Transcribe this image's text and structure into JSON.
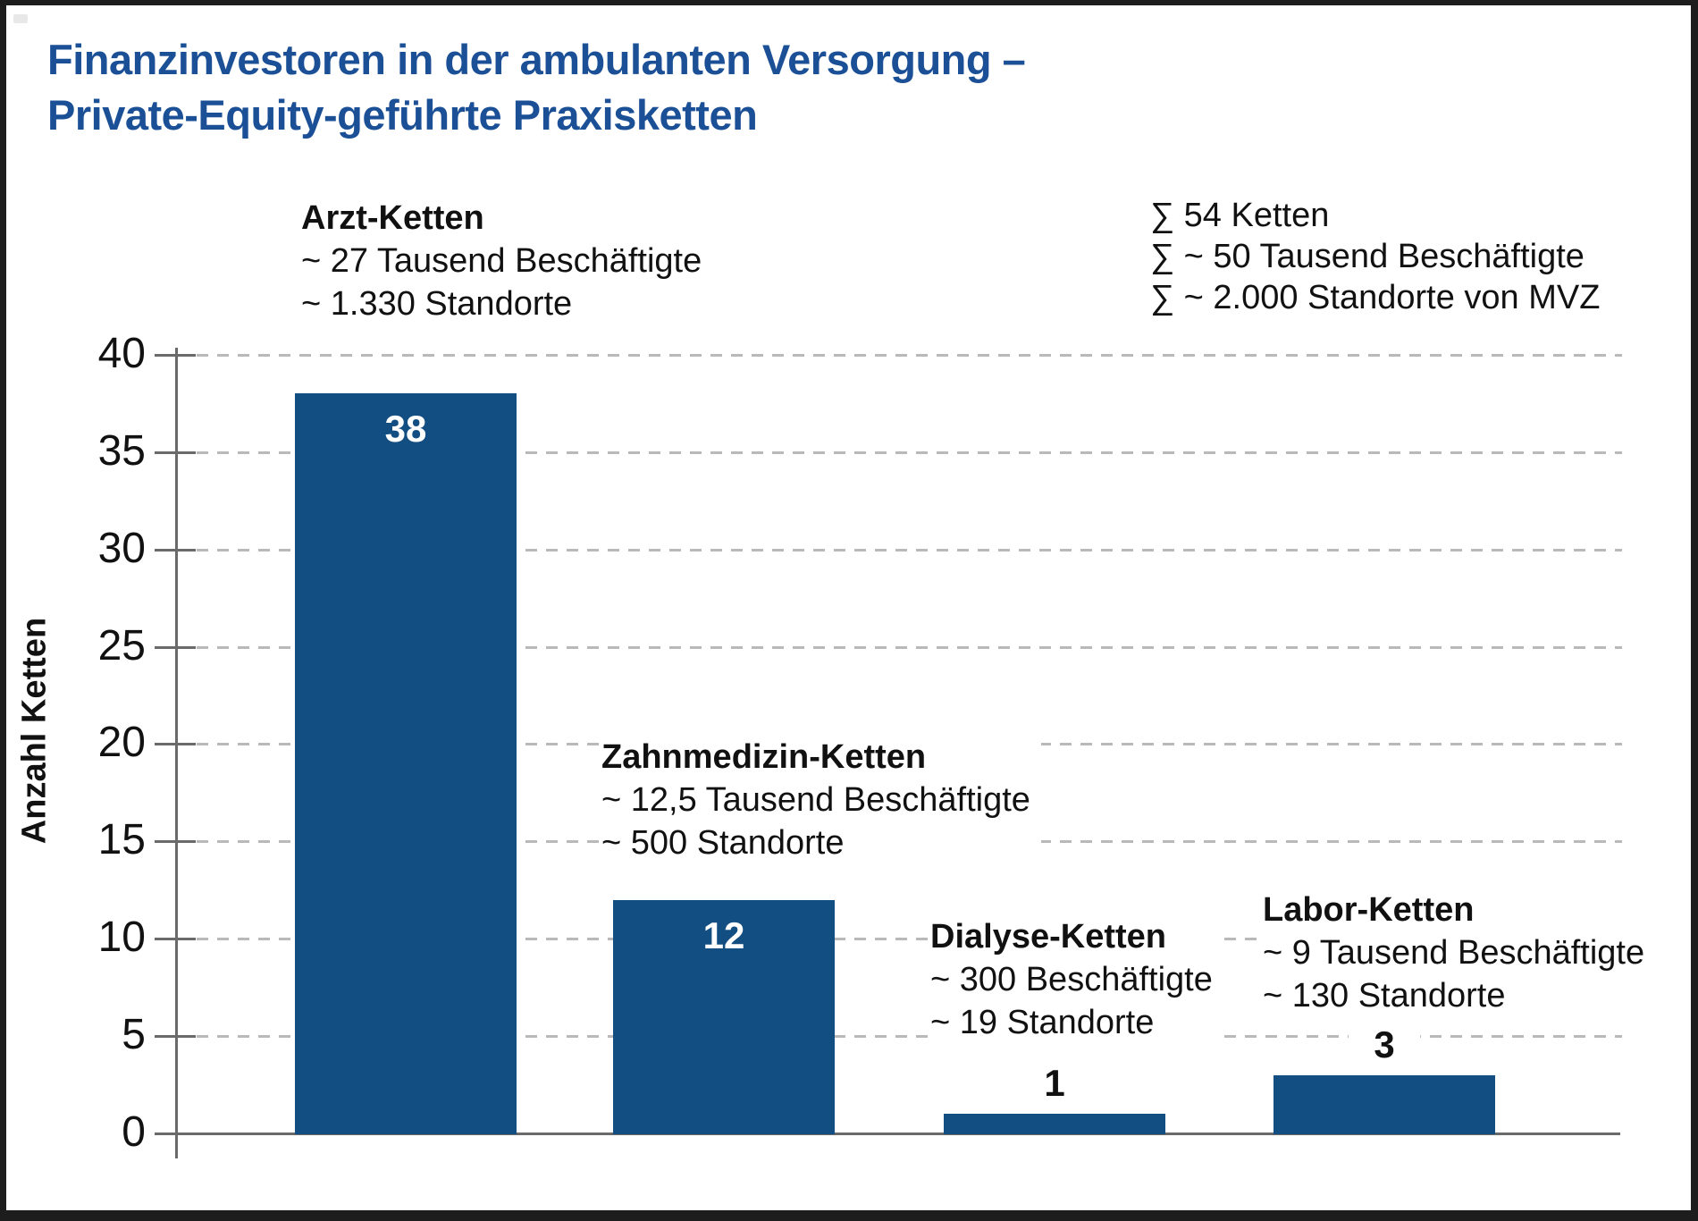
{
  "title": {
    "line1": "Finanzinvestoren in der ambulanten Versorgung –",
    "line2": "Private-Equity-geführte Praxisketten"
  },
  "colors": {
    "title_blue": "#1b5097",
    "bar_blue": "#134e82",
    "axis_gray": "#6a6a6a",
    "grid_gray": "#b9b9b9",
    "text_black": "#111111",
    "bar_value_white": "#ffffff"
  },
  "summary": {
    "lines": [
      "∑ 54 Ketten",
      "∑ ~ 50 Tausend Beschäftigte",
      "∑ ~ 2.000 Standorte von MVZ"
    ]
  },
  "chart_data": {
    "type": "bar",
    "title": "Finanzinvestoren in der ambulanten Versorgung – Private-Equity-geführte Praxisketten",
    "xlabel": "",
    "ylabel": "Anzahl Ketten",
    "ylim": [
      0,
      40
    ],
    "yticks": [
      0,
      5,
      10,
      15,
      20,
      25,
      30,
      35,
      40
    ],
    "grid": "horizontal dashed",
    "legend": "none",
    "categories": [
      "Arzt-Ketten",
      "Zahnmedizin-Ketten",
      "Dialyse-Ketten",
      "Labor-Ketten"
    ],
    "values": [
      38,
      12,
      1,
      3
    ],
    "bars": [
      {
        "label": "Arzt-Ketten",
        "value": 38,
        "value_label": "38",
        "value_label_position": "inside",
        "annotation": [
          "~ 27 Tausend Beschäftigte",
          "~ 1.330 Standorte"
        ]
      },
      {
        "label": "Zahnmedizin-Ketten",
        "value": 12,
        "value_label": "12",
        "value_label_position": "inside",
        "annotation": [
          "~ 12,5 Tausend Beschäftigte",
          "~ 500 Standorte"
        ]
      },
      {
        "label": "Dialyse-Ketten",
        "value": 1,
        "value_label": "1",
        "value_label_position": "above",
        "annotation": [
          "~ 300 Beschäftigte",
          "~ 19 Standorte"
        ]
      },
      {
        "label": "Labor-Ketten",
        "value": 3,
        "value_label": "3",
        "value_label_position": "above",
        "annotation": [
          "~ 9 Tausend Beschäftigte",
          "~ 130 Standorte"
        ]
      }
    ]
  }
}
